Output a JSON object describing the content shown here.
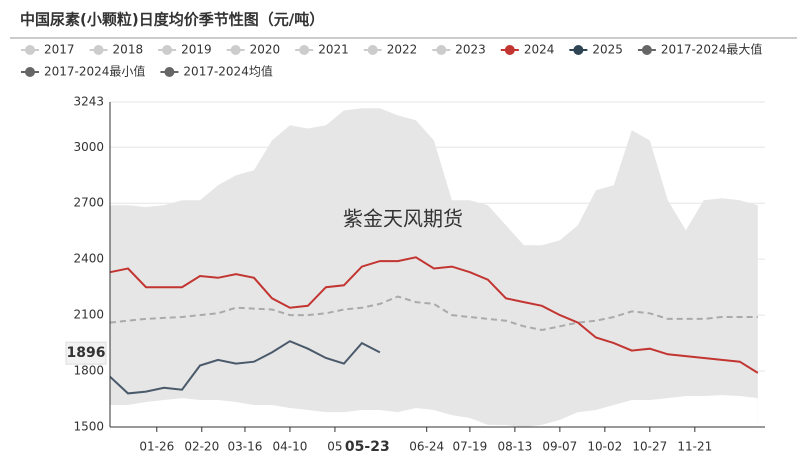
{
  "chart_data": {
    "type": "seasonal",
    "title": "中国尿素(小颗粒)日度均价季节性图（元/吨）",
    "watermark": "紫金天风期货",
    "legend": [
      {
        "name": "2017",
        "color": "#cccccc",
        "active": false
      },
      {
        "name": "2018",
        "color": "#cccccc",
        "active": false
      },
      {
        "name": "2019",
        "color": "#cccccc",
        "active": false
      },
      {
        "name": "2020",
        "color": "#cccccc",
        "active": false
      },
      {
        "name": "2021",
        "color": "#cccccc",
        "active": false
      },
      {
        "name": "2022",
        "color": "#cccccc",
        "active": false
      },
      {
        "name": "2023",
        "color": "#cccccc",
        "active": false
      },
      {
        "name": "2024",
        "color": "#c23531",
        "active": true
      },
      {
        "name": "2025",
        "color": "#2f4554",
        "active": true
      },
      {
        "name": "2017-2024最大值",
        "color": "#666666",
        "active": true
      },
      {
        "name": "2017-2024最小值",
        "color": "#666666",
        "active": true
      },
      {
        "name": "2017-2024均值",
        "color": "#666666",
        "active": true
      }
    ],
    "x": [
      0,
      10,
      20,
      30,
      40,
      50,
      60,
      70,
      80,
      90,
      100,
      110,
      120,
      130,
      140,
      150,
      160,
      170,
      180,
      190,
      200,
      210,
      220,
      230,
      240,
      250,
      260,
      270,
      280,
      290,
      300,
      310,
      320,
      330,
      340,
      350,
      360
    ],
    "xlim": [
      0,
      364
    ],
    "xticks": [
      {
        "value": 26,
        "label": "01-26"
      },
      {
        "value": 51,
        "label": "02-20"
      },
      {
        "value": 75,
        "label": "03-16"
      },
      {
        "value": 100,
        "label": "04-10"
      },
      {
        "value": 125,
        "label": "05"
      },
      {
        "value": 176,
        "label": "06-24"
      },
      {
        "value": 200,
        "label": "07-19"
      },
      {
        "value": 225,
        "label": "08-13"
      },
      {
        "value": 250,
        "label": "09-07"
      },
      {
        "value": 275,
        "label": "10-02"
      },
      {
        "value": 300,
        "label": "10-27"
      },
      {
        "value": 325,
        "label": "11-21"
      }
    ],
    "ylim": [
      1500,
      3243
    ],
    "yticks": [
      1500,
      1800,
      2100,
      2400,
      2700,
      3000,
      3243
    ],
    "grid": true,
    "crosshair": {
      "x": {
        "value": 143,
        "label": "05-23"
      },
      "y": 1896
    },
    "series": [
      {
        "name": "2017-2024最大值",
        "kind": "band-upper",
        "color": "#e6e6e6",
        "values": [
          2689,
          2689,
          2680,
          2689,
          2716,
          2716,
          2796,
          2850,
          2877,
          3037,
          3118,
          3101,
          3118,
          3198,
          3209,
          3209,
          3171,
          3145,
          3037,
          2716,
          2716,
          2689,
          2582,
          2475,
          2475,
          2502,
          2582,
          2770,
          2796,
          3091,
          3037,
          2716,
          2555,
          2716,
          2727,
          2716,
          2689
        ]
      },
      {
        "name": "2017-2024最小值",
        "kind": "band-lower",
        "color": "#ffffff",
        "values": [
          1618,
          1618,
          1634,
          1645,
          1655,
          1645,
          1645,
          1634,
          1618,
          1618,
          1602,
          1591,
          1580,
          1580,
          1591,
          1591,
          1580,
          1602,
          1591,
          1564,
          1548,
          1511,
          1510,
          1500,
          1511,
          1538,
          1580,
          1591,
          1618,
          1645,
          1645,
          1655,
          1666,
          1666,
          1671,
          1666,
          1655
        ]
      },
      {
        "name": "2017-2024均值",
        "kind": "dashed",
        "color": "#aaaaaa",
        "values": [
          2060,
          2070,
          2080,
          2085,
          2090,
          2100,
          2110,
          2140,
          2135,
          2130,
          2100,
          2100,
          2110,
          2130,
          2140,
          2160,
          2200,
          2170,
          2160,
          2100,
          2090,
          2080,
          2070,
          2040,
          2020,
          2040,
          2060,
          2070,
          2090,
          2120,
          2110,
          2080,
          2080,
          2080,
          2090,
          2090,
          2090
        ]
      },
      {
        "name": "2024",
        "kind": "line",
        "color": "#c23531",
        "values": [
          2330,
          2350,
          2250,
          2250,
          2250,
          2310,
          2300,
          2320,
          2300,
          2190,
          2140,
          2150,
          2250,
          2260,
          2360,
          2390,
          2390,
          2410,
          2350,
          2360,
          2330,
          2290,
          2190,
          2170,
          2150,
          2100,
          2060,
          1980,
          1950,
          1910,
          1920,
          1890,
          1880,
          1870,
          1860,
          1850,
          1790
        ]
      },
      {
        "name": "2025",
        "kind": "line",
        "color": "#4a5a6a",
        "values": [
          1770,
          1680,
          1690,
          1710,
          1700,
          1830,
          1860,
          1840,
          1850,
          1900,
          1960,
          1920,
          1870,
          1840,
          1950,
          1900,
          null,
          null,
          null,
          null,
          null,
          null,
          null,
          null,
          null,
          null,
          null,
          null,
          null,
          null,
          null,
          null,
          null,
          null,
          null,
          null,
          null
        ]
      }
    ]
  }
}
